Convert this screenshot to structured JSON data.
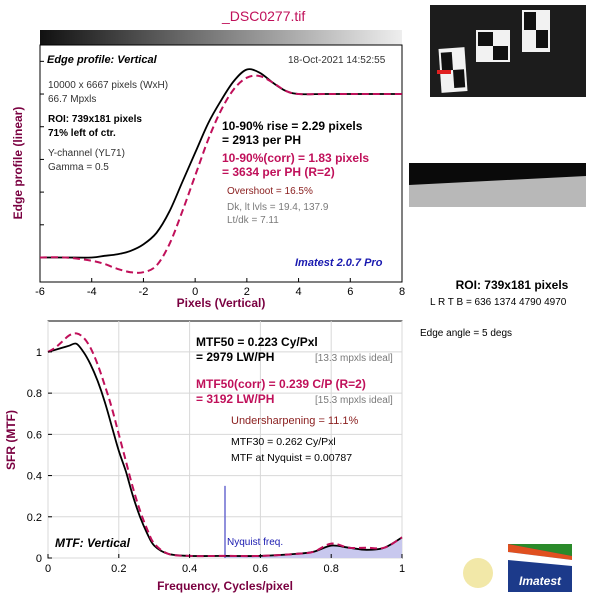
{
  "file_title": "_DSC0277.tif",
  "colors": {
    "black": "#000000",
    "crimson": "#c0105a",
    "maroon": "#7a0040",
    "navy": "#1a1ab0",
    "gray": "#7a7a7a",
    "brown": "#8b2020",
    "nyquist_line": "#6a6ad0",
    "mtf_fill": "#c8c8ee"
  },
  "top_plot": {
    "title": "Edge profile: Vertical",
    "timestamp": "18-Oct-2021 14:52:55",
    "info_lines": [
      "10000 x 6667 pixels (WxH)",
      "66.7 Mpxls"
    ],
    "roi_lines": [
      "ROI: 739x181 pixels",
      "71% left of ctr."
    ],
    "channel_lines": [
      "Y-channel  (YL71)",
      "Gamma = 0.5"
    ],
    "rise_lines": [
      "10-90% rise = 2.29 pixels",
      "= 2913 per PH"
    ],
    "rise_corr_lines": [
      "10-90%(corr) = 1.83 pixels",
      "= 3634 per PH  (R=2)"
    ],
    "overshoot": "Overshoot = 16.5%",
    "levels_lines": [
      "Dk, lt lvls = 19.4, 137.9",
      "Lt/dk = 7.11"
    ],
    "watermark": "Imatest 2.0.7 Pro",
    "ylabel": "Edge profile (linear)",
    "xlabel": "Pixels (Vertical)",
    "xticks": [
      "-6",
      "-4",
      "-2",
      "0",
      "2",
      "4",
      "6",
      "8"
    ]
  },
  "bottom_plot": {
    "mtf50_lines": [
      "MTF50 = 0.223 Cy/Pxl",
      "= 2979 LW/PH"
    ],
    "mtf50_ideal": "[13.3 mpxls ideal]",
    "mtf50c_lines": [
      "MTF50(corr) = 0.239 C/P  (R=2)",
      "= 3192 LW/PH"
    ],
    "mtf50c_ideal": "[15.3 mpxls ideal]",
    "undersharpening": "Undersharpening = 11.1%",
    "mtf30": "MTF30 = 0.262 Cy/Pxl",
    "mtf_nyq": "MTF at Nyquist = 0.00787",
    "nyquist_label": "Nyquist freq.",
    "title": "MTF: Vertical",
    "ylabel": "SFR (MTF)",
    "xlabel": "Frequency, Cycles/pixel",
    "xticks": [
      "0",
      "0.2",
      "0.4",
      "0.6",
      "0.8",
      "1"
    ],
    "yticks": [
      "0",
      "0.2",
      "0.4",
      "0.6",
      "0.8",
      "1"
    ]
  },
  "side": {
    "roi": "ROI: 739x181 pixels",
    "lrtb": "L R  T B = 636 1374  4790 4970",
    "edge_angle": "Edge angle = 5 degs",
    "logo": "Imatest"
  },
  "chart_data": [
    {
      "type": "line",
      "title": "Edge profile: Vertical",
      "xlabel": "Pixels (Vertical)",
      "ylabel": "Edge profile (linear)",
      "xlim": [
        -6,
        8
      ],
      "ylim": [
        -0.15,
        1.3
      ],
      "series": [
        {
          "values": [
            [
              -6,
              0.0
            ],
            [
              -5,
              0.0
            ],
            [
              -4,
              0.0
            ],
            [
              -3.5,
              0.01
            ],
            [
              -3,
              0.02
            ],
            [
              -2.5,
              0.04
            ],
            [
              -2,
              0.08
            ],
            [
              -1.5,
              0.15
            ],
            [
              -1,
              0.28
            ],
            [
              -0.5,
              0.46
            ],
            [
              0,
              0.64
            ],
            [
              0.5,
              0.82
            ],
            [
              1,
              0.96
            ],
            [
              1.5,
              1.08
            ],
            [
              2,
              1.15
            ],
            [
              2.5,
              1.13
            ],
            [
              3,
              1.07
            ],
            [
              3.5,
              1.02
            ],
            [
              4,
              1.0
            ],
            [
              5,
              1.0
            ],
            [
              6,
              1.0
            ],
            [
              7,
              1.0
            ],
            [
              8,
              1.0
            ]
          ]
        },
        {
          "values": [
            [
              -6,
              0.0
            ],
            [
              -5,
              0.0
            ],
            [
              -4,
              -0.02
            ],
            [
              -3.5,
              -0.04
            ],
            [
              -3,
              -0.07
            ],
            [
              -2.5,
              -0.09
            ],
            [
              -2,
              -0.09
            ],
            [
              -1.5,
              -0.05
            ],
            [
              -1,
              0.08
            ],
            [
              -0.5,
              0.28
            ],
            [
              0,
              0.5
            ],
            [
              0.5,
              0.72
            ],
            [
              1,
              0.9
            ],
            [
              1.5,
              1.03
            ],
            [
              2,
              1.1
            ],
            [
              2.5,
              1.11
            ],
            [
              3,
              1.07
            ],
            [
              3.5,
              1.02
            ],
            [
              4,
              1.0
            ],
            [
              5,
              1.0
            ],
            [
              6,
              1.0
            ],
            [
              7,
              1.0
            ],
            [
              8,
              1.0
            ]
          ]
        }
      ]
    },
    {
      "type": "line",
      "title": "MTF: Vertical",
      "xlabel": "Frequency, Cycles/pixel",
      "ylabel": "SFR (MTF)",
      "xlim": [
        0,
        1
      ],
      "ylim": [
        0,
        1.15
      ],
      "series": [
        {
          "values": [
            [
              0,
              1.0
            ],
            [
              0.02,
              1.01
            ],
            [
              0.04,
              1.02
            ],
            [
              0.06,
              1.03
            ],
            [
              0.08,
              1.04
            ],
            [
              0.1,
              1.0
            ],
            [
              0.12,
              0.94
            ],
            [
              0.14,
              0.86
            ],
            [
              0.16,
              0.76
            ],
            [
              0.18,
              0.64
            ],
            [
              0.2,
              0.52
            ],
            [
              0.22,
              0.42
            ],
            [
              0.24,
              0.3
            ],
            [
              0.26,
              0.2
            ],
            [
              0.28,
              0.12
            ],
            [
              0.3,
              0.06
            ],
            [
              0.34,
              0.02
            ],
            [
              0.4,
              0.01
            ],
            [
              0.5,
              0.01
            ],
            [
              0.6,
              0.01
            ],
            [
              0.7,
              0.02
            ],
            [
              0.75,
              0.03
            ],
            [
              0.8,
              0.06
            ],
            [
              0.85,
              0.05
            ],
            [
              0.9,
              0.04
            ],
            [
              0.95,
              0.05
            ],
            [
              1,
              0.1
            ]
          ]
        },
        {
          "values": [
            [
              0,
              1.0
            ],
            [
              0.02,
              1.02
            ],
            [
              0.04,
              1.05
            ],
            [
              0.06,
              1.08
            ],
            [
              0.08,
              1.09
            ],
            [
              0.1,
              1.07
            ],
            [
              0.12,
              1.02
            ],
            [
              0.14,
              0.94
            ],
            [
              0.16,
              0.84
            ],
            [
              0.18,
              0.73
            ],
            [
              0.2,
              0.6
            ],
            [
              0.22,
              0.47
            ],
            [
              0.24,
              0.34
            ],
            [
              0.26,
              0.23
            ],
            [
              0.28,
              0.14
            ],
            [
              0.3,
              0.07
            ],
            [
              0.34,
              0.02
            ],
            [
              0.4,
              0.01
            ],
            [
              0.5,
              0.01
            ],
            [
              0.6,
              0.01
            ],
            [
              0.7,
              0.02
            ],
            [
              0.75,
              0.03
            ],
            [
              0.8,
              0.07
            ],
            [
              0.85,
              0.05
            ],
            [
              0.9,
              0.05
            ],
            [
              0.95,
              0.05
            ],
            [
              1,
              0.1
            ]
          ]
        }
      ]
    }
  ]
}
